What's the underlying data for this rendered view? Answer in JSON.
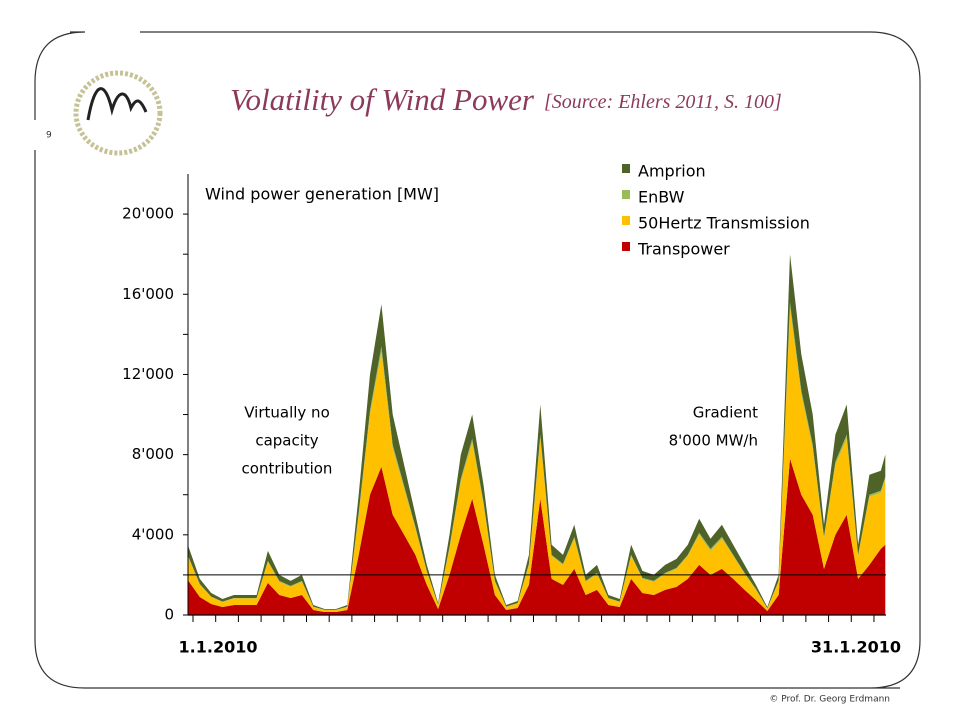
{
  "page_number": "9",
  "copyright": "© Prof. Dr. Georg Erdmann",
  "chart_data": {
    "type": "stacked-area",
    "title": "Volatility of  Wind Power",
    "subtitle": "[Source: Ehlers 2011, S. 100]",
    "ylabel": "Wind power generation [MW]",
    "annotations": [
      {
        "lines": [
          "Virtually no",
          "capacity",
          "contribution"
        ]
      },
      {
        "lines": [
          "Gradient",
          "8'000 MW/h"
        ]
      }
    ],
    "legend": "top-right",
    "reference_line": 2000,
    "x": [
      0.8,
      1.3,
      1.8,
      2.3,
      2.8,
      3.3,
      3.8,
      4.3,
      4.8,
      5.3,
      5.8,
      6.3,
      6.8,
      7.3,
      7.8,
      8.3,
      8.8,
      9.3,
      9.8,
      10.3,
      10.8,
      11.3,
      11.8,
      12.3,
      12.8,
      13.3,
      13.8,
      14.3,
      14.8,
      15.3,
      15.8,
      16.3,
      16.8,
      17.3,
      17.8,
      18.3,
      18.8,
      19.3,
      19.8,
      20.3,
      20.8,
      21.3,
      21.8,
      22.3,
      22.8,
      23.3,
      23.8,
      24.3,
      24.8,
      25.3,
      25.8,
      26.3,
      26.8,
      27.3,
      27.8,
      28.3,
      28.8,
      29.3,
      29.8,
      30.3,
      30.8,
      31.3,
      31.5
    ],
    "xlim": [
      0.78,
      31.53
    ],
    "xticks": [
      {
        "value": 1,
        "label": "1.1.2010"
      },
      {
        "value": 31,
        "label": "31.1.2010"
      }
    ],
    "xminorticks": [
      1,
      2,
      3,
      4,
      5,
      6,
      7,
      8,
      9,
      10,
      11,
      12,
      13,
      14,
      15,
      16,
      17,
      18,
      19,
      20,
      21,
      22,
      23,
      24,
      25,
      26,
      27,
      28,
      29,
      30,
      31
    ],
    "ylim": [
      0,
      22000
    ],
    "yticks": [
      0,
      {
        "value": 4000,
        "label": "4'000"
      },
      {
        "value": 8000,
        "label": "8'000"
      },
      {
        "value": 12000,
        "label": "12'000"
      },
      {
        "value": 16000,
        "label": "16'000"
      },
      {
        "value": 20000,
        "label": "20'000"
      }
    ],
    "yminorticks": [
      2000,
      6000,
      10000,
      14000,
      18000
    ],
    "series": [
      {
        "name": "Transpower",
        "color": "#c00000",
        "values": [
          1700,
          900,
          550,
          400,
          500,
          500,
          500,
          1600,
          1000,
          850,
          1000,
          250,
          150,
          150,
          250,
          3000,
          6000,
          7400,
          5000,
          4000,
          3000,
          1500,
          300,
          2000,
          4000,
          5800,
          3500,
          1000,
          250,
          350,
          1500,
          5800,
          1800,
          1500,
          2300,
          1000,
          1250,
          500,
          400,
          1800,
          1100,
          1000,
          1250,
          1400,
          1800,
          2500,
          2000,
          2300,
          1800,
          1250,
          750,
          200,
          1000,
          7800,
          6000,
          5000,
          2300,
          4000,
          5000,
          1800,
          2500,
          3300,
          3500
        ]
      },
      {
        "name": "50Hertz Transmission",
        "color": "#ffc000",
        "values": [
          1150,
          600,
          350,
          250,
          330,
          330,
          330,
          1050,
          650,
          550,
          650,
          150,
          100,
          100,
          150,
          2000,
          4000,
          5700,
          3300,
          2300,
          1300,
          650,
          200,
          1300,
          2650,
          2800,
          2000,
          650,
          150,
          230,
          1000,
          3000,
          1150,
          1000,
          1500,
          650,
          800,
          330,
          250,
          1150,
          700,
          650,
          800,
          900,
          1150,
          1500,
          1200,
          1500,
          1150,
          800,
          500,
          130,
          650,
          7500,
          5000,
          3300,
          1500,
          3500,
          3800,
          1150,
          3400,
          2800,
          3300
        ]
      },
      {
        "name": "EnBW",
        "color": "#9bbb59",
        "values": [
          50,
          50,
          20,
          20,
          20,
          20,
          20,
          50,
          50,
          50,
          50,
          20,
          10,
          10,
          20,
          100,
          200,
          300,
          200,
          150,
          100,
          50,
          20,
          100,
          150,
          200,
          150,
          50,
          20,
          20,
          50,
          200,
          50,
          50,
          100,
          50,
          50,
          20,
          20,
          50,
          50,
          50,
          50,
          50,
          50,
          100,
          100,
          100,
          50,
          50,
          50,
          10,
          50,
          300,
          200,
          200,
          100,
          150,
          200,
          50,
          100,
          100,
          100
        ]
      },
      {
        "name": "Amprion",
        "color": "#4f6228",
        "values": [
          500,
          250,
          180,
          130,
          150,
          150,
          150,
          500,
          300,
          250,
          300,
          80,
          40,
          40,
          80,
          900,
          1800,
          2100,
          1500,
          1050,
          600,
          300,
          80,
          600,
          1200,
          1200,
          850,
          300,
          80,
          100,
          450,
          1500,
          500,
          450,
          600,
          300,
          400,
          150,
          130,
          500,
          350,
          300,
          400,
          450,
          500,
          700,
          500,
          600,
          500,
          400,
          200,
          60,
          300,
          2400,
          1800,
          1500,
          600,
          1350,
          1500,
          500,
          1000,
          1000,
          1100
        ]
      }
    ]
  }
}
